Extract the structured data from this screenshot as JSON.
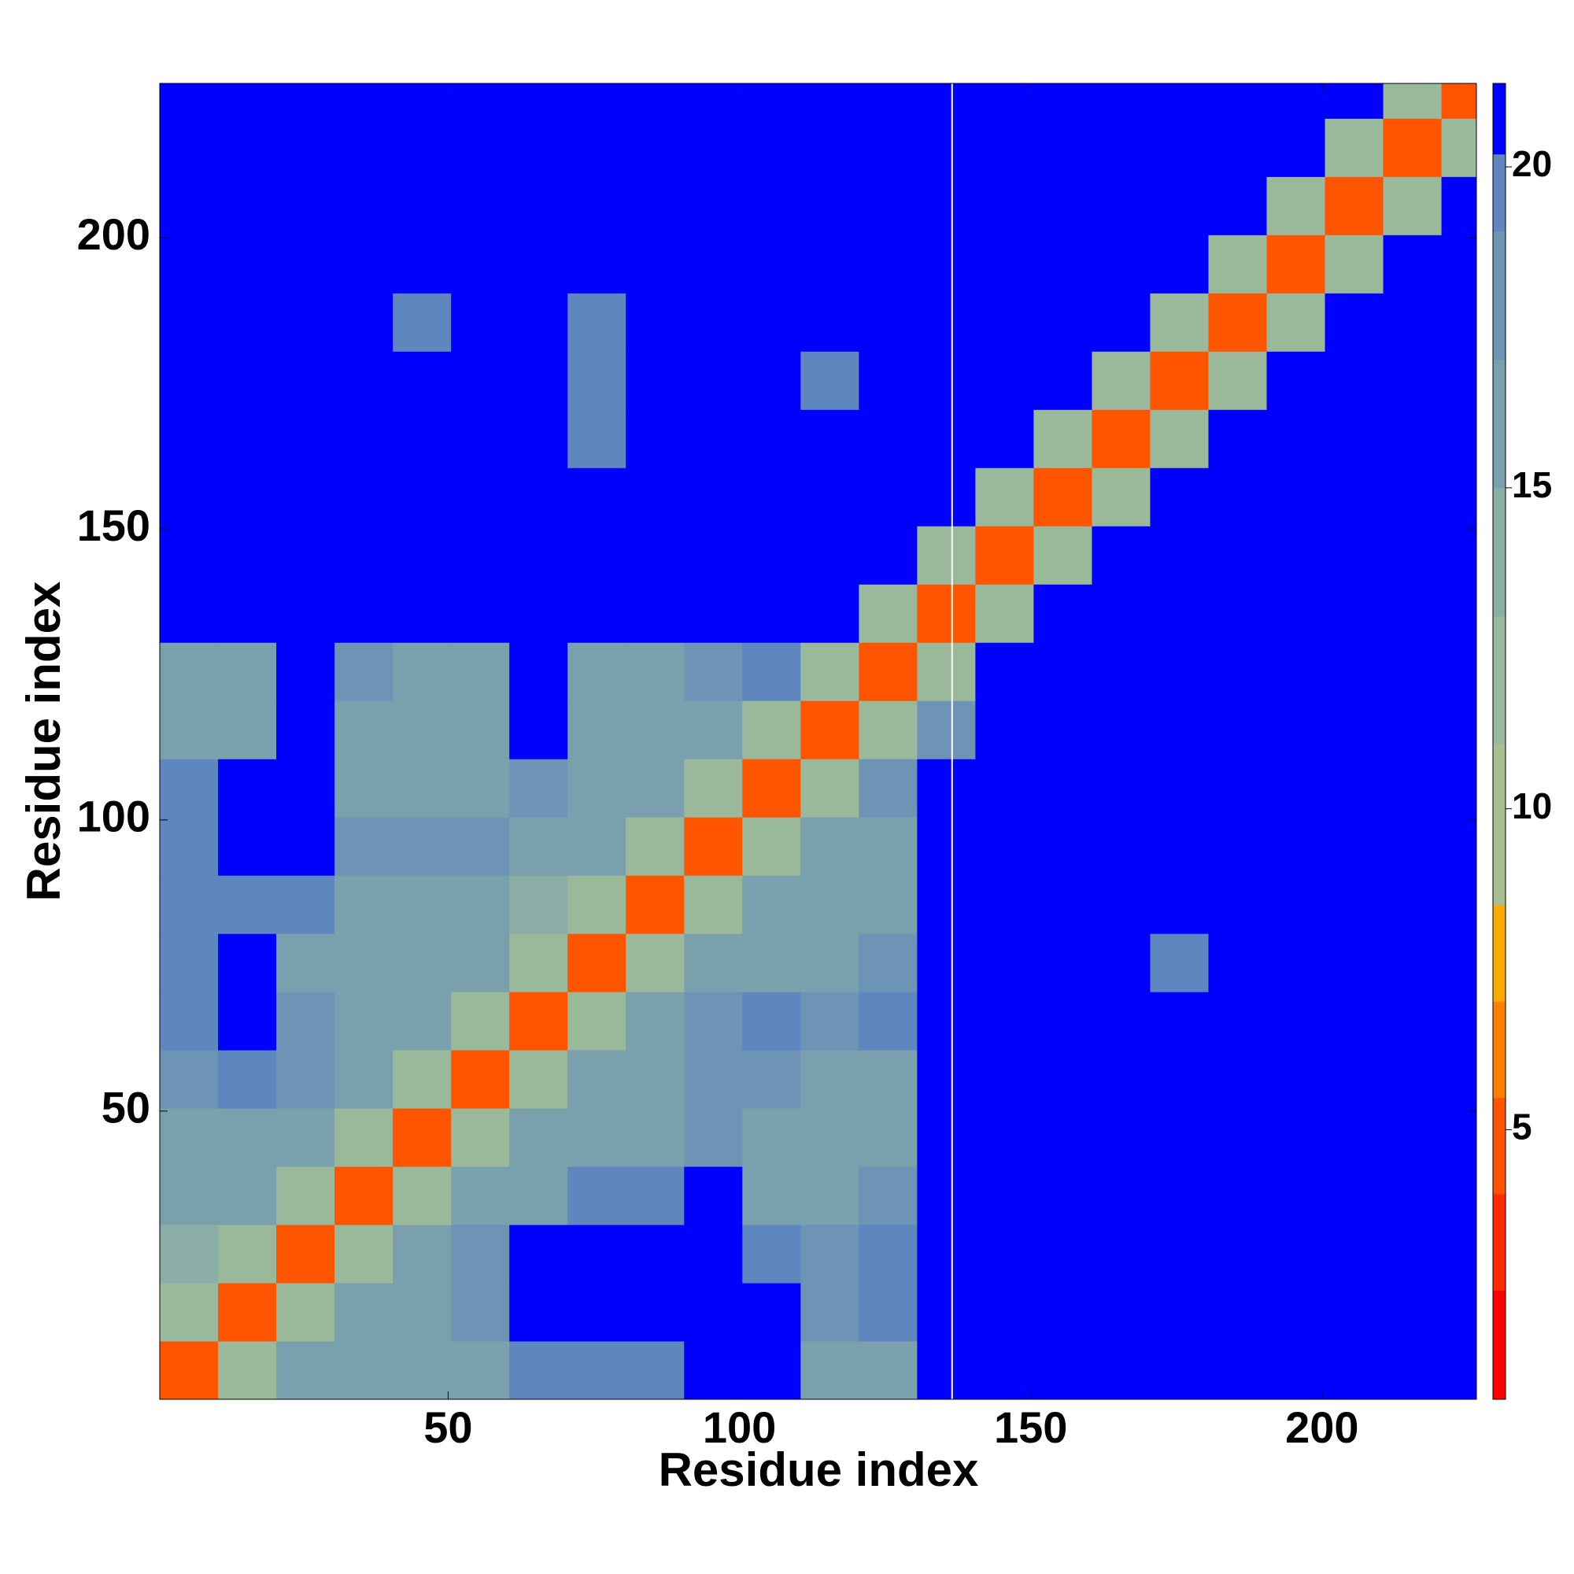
{
  "chart_data": {
    "type": "heatmap",
    "xlabel": "Residue index",
    "ylabel": "Residue index",
    "xlim": [
      0.5,
      226.5
    ],
    "ylim": [
      0.5,
      226.5
    ],
    "xticks": [
      50,
      100,
      150,
      200
    ],
    "yticks": [
      50,
      100,
      150,
      200
    ],
    "x_edges": [
      0.5,
      10.5,
      20.5,
      30.5,
      40.5,
      50.5,
      60.5,
      70.5,
      80.5,
      90.5,
      100.5,
      110.5,
      120.5,
      130.5,
      140.5,
      150.5,
      160.5,
      170.5,
      180.5,
      190.5,
      200.5,
      210.5,
      220.5,
      226.5
    ],
    "y_edges": [
      0.5,
      10.5,
      20.5,
      30.5,
      40.5,
      50.5,
      60.5,
      70.5,
      80.5,
      90.5,
      100.5,
      110.5,
      120.5,
      130.5,
      140.5,
      150.5,
      160.5,
      170.5,
      180.5,
      190.5,
      200.5,
      210.5,
      220.5,
      226.5
    ],
    "z": [
      [
        4,
        12,
        15,
        16,
        15,
        16,
        19,
        19,
        19,
        21,
        21,
        15,
        16,
        21,
        21,
        21,
        21,
        21,
        21,
        21,
        21,
        21,
        21
      ],
      [
        12,
        4,
        12,
        15,
        15,
        17,
        21,
        21,
        21,
        21,
        21,
        17,
        19,
        21,
        21,
        21,
        21,
        21,
        21,
        21,
        21,
        21,
        21
      ],
      [
        13,
        12,
        4,
        12,
        15,
        17,
        21,
        21,
        21,
        21,
        19,
        17,
        19,
        21,
        21,
        21,
        21,
        21,
        21,
        21,
        21,
        21,
        21
      ],
      [
        15,
        15,
        12,
        4,
        12,
        15,
        16,
        19,
        19,
        21,
        15,
        16,
        18,
        21,
        21,
        21,
        21,
        21,
        21,
        21,
        21,
        21,
        21
      ],
      [
        15,
        16,
        15,
        12,
        4,
        12,
        15,
        15,
        16,
        18,
        15,
        15,
        16,
        21,
        21,
        21,
        21,
        21,
        21,
        21,
        21,
        21,
        21
      ],
      [
        18,
        19,
        17,
        15,
        12,
        4,
        12,
        15,
        16,
        18,
        17,
        15,
        15,
        21,
        21,
        21,
        21,
        21,
        21,
        21,
        21,
        21,
        21
      ],
      [
        19,
        21,
        17,
        15,
        15,
        12,
        4,
        12,
        15,
        17,
        19,
        17,
        19,
        21,
        21,
        21,
        21,
        21,
        21,
        21,
        21,
        21,
        21
      ],
      [
        19,
        21,
        16,
        15,
        15,
        15,
        12,
        4,
        12,
        16,
        15,
        16,
        18,
        21,
        21,
        21,
        21,
        19,
        21,
        21,
        21,
        21,
        21
      ],
      [
        19,
        19,
        19,
        15,
        15,
        16,
        14,
        12,
        4,
        12,
        15,
        15,
        16,
        21,
        21,
        21,
        21,
        21,
        21,
        21,
        21,
        21,
        21
      ],
      [
        19,
        21,
        21,
        18,
        17,
        18,
        16,
        15,
        12,
        4,
        12,
        15,
        16,
        21,
        21,
        21,
        21,
        21,
        21,
        21,
        21,
        21,
        21
      ],
      [
        19,
        21,
        21,
        15,
        15,
        16,
        17,
        15,
        15,
        12,
        4,
        12,
        17,
        21,
        21,
        21,
        21,
        21,
        21,
        21,
        21,
        21,
        21
      ],
      [
        15,
        16,
        21,
        15,
        15,
        15,
        21,
        15,
        15,
        16,
        12,
        4,
        12,
        17,
        21,
        21,
        21,
        21,
        21,
        21,
        21,
        21,
        21
      ],
      [
        15,
        15,
        21,
        18,
        15,
        15,
        21,
        16,
        15,
        17,
        19,
        12,
        4,
        12,
        21,
        21,
        21,
        21,
        21,
        21,
        21,
        21,
        21
      ],
      [
        21,
        21,
        21,
        21,
        21,
        21,
        21,
        21,
        21,
        21,
        21,
        21,
        12,
        4,
        12,
        21,
        21,
        21,
        21,
        21,
        21,
        21,
        21
      ],
      [
        21,
        21,
        21,
        21,
        21,
        21,
        21,
        21,
        21,
        21,
        21,
        21,
        21,
        12,
        4,
        12,
        21,
        21,
        21,
        21,
        21,
        21,
        21
      ],
      [
        21,
        21,
        21,
        21,
        21,
        21,
        21,
        21,
        21,
        21,
        21,
        21,
        21,
        21,
        12,
        4,
        12,
        21,
        21,
        21,
        21,
        21,
        21
      ],
      [
        21,
        21,
        21,
        21,
        21,
        21,
        21,
        19,
        21,
        21,
        21,
        21,
        21,
        21,
        21,
        12,
        4,
        12,
        21,
        21,
        21,
        21,
        21
      ],
      [
        21,
        21,
        21,
        21,
        21,
        21,
        21,
        19,
        21,
        21,
        21,
        19,
        21,
        21,
        21,
        21,
        12,
        4,
        12,
        21,
        21,
        21,
        21
      ],
      [
        21,
        21,
        21,
        21,
        19,
        21,
        21,
        19,
        21,
        21,
        21,
        21,
        21,
        21,
        21,
        21,
        21,
        12,
        4,
        12,
        21,
        21,
        21
      ],
      [
        21,
        21,
        21,
        21,
        21,
        21,
        21,
        21,
        21,
        21,
        21,
        21,
        21,
        21,
        21,
        21,
        21,
        21,
        12,
        4,
        12,
        21,
        21
      ],
      [
        21,
        21,
        21,
        21,
        21,
        21,
        21,
        21,
        21,
        21,
        21,
        21,
        21,
        21,
        21,
        21,
        21,
        21,
        21,
        12,
        4,
        12,
        21
      ],
      [
        21,
        21,
        21,
        21,
        21,
        21,
        21,
        21,
        21,
        21,
        21,
        21,
        21,
        21,
        21,
        21,
        21,
        21,
        21,
        21,
        12,
        4,
        12
      ],
      [
        21,
        21,
        21,
        21,
        21,
        21,
        21,
        21,
        21,
        21,
        21,
        21,
        21,
        21,
        21,
        21,
        21,
        21,
        21,
        21,
        21,
        12,
        4
      ]
    ],
    "vline": 136.5,
    "zlim": [
      0.8,
      21.3
    ],
    "zticks": [
      5,
      10,
      15,
      20
    ],
    "colorscale": [
      {
        "value": 0.8,
        "color": "#ff0000"
      },
      {
        "value": 2.5,
        "color": "#ff2a00"
      },
      {
        "value": 4,
        "color": "#ff5500"
      },
      {
        "value": 5.5,
        "color": "#ff7f00"
      },
      {
        "value": 7,
        "color": "#ffaa00"
      },
      {
        "value": 8.5,
        "color": "#a8c090"
      },
      {
        "value": 11,
        "color": "#9ab89a"
      },
      {
        "value": 13,
        "color": "#8aaea5"
      },
      {
        "value": 15,
        "color": "#7aa0ae"
      },
      {
        "value": 17,
        "color": "#6d93b5"
      },
      {
        "value": 19,
        "color": "#5f86bf"
      },
      {
        "value": 20.2,
        "color": "#0000ff"
      }
    ]
  }
}
